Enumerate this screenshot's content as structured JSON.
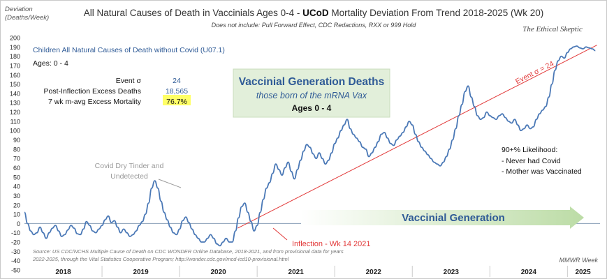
{
  "chart_data": {
    "type": "line",
    "title_part1": "All Natural Causes of Death in Vaccinials Ages 0-4 - ",
    "title_bold": "UCoD",
    "title_part2": " Mortality Deviation From Trend  2018-2025 (Wk 20)",
    "subtitle": "Does not include: Pull Forward Effect,  CDC Redactions, RXX or 999 Hold",
    "brand": "The Ethical Skeptic",
    "ylabel_line1": "Deviation",
    "ylabel_line2": "(Deaths/Week)",
    "xlabel": "MMWR Week",
    "ylim": [
      -50,
      200
    ],
    "ytick_step": 10,
    "x_tick_labels": [
      "2018",
      "2019",
      "2020",
      "2021",
      "2022",
      "2023",
      "2024",
      "2025"
    ],
    "grid": false,
    "series": [
      {
        "color": "#4a78b6",
        "x": [
          2018.0,
          2018.04,
          2018.08,
          2018.12,
          2018.16,
          2018.2,
          2018.24,
          2018.28,
          2018.32,
          2018.36,
          2018.4,
          2018.44,
          2018.48,
          2018.52,
          2018.56,
          2018.6,
          2018.64,
          2018.68,
          2018.72,
          2018.76,
          2018.8,
          2018.84,
          2018.88,
          2018.92,
          2018.96,
          2019.0,
          2019.04,
          2019.08,
          2019.12,
          2019.16,
          2019.2,
          2019.24,
          2019.28,
          2019.32,
          2019.36,
          2019.4,
          2019.44,
          2019.48,
          2019.52,
          2019.56,
          2019.6,
          2019.64,
          2019.68,
          2019.72,
          2019.76,
          2019.8,
          2019.84,
          2019.88,
          2019.92,
          2019.96,
          2020.0,
          2020.04,
          2020.08,
          2020.12,
          2020.16,
          2020.2,
          2020.24,
          2020.28,
          2020.32,
          2020.36,
          2020.4,
          2020.44,
          2020.48,
          2020.52,
          2020.56,
          2020.6,
          2020.64,
          2020.68,
          2020.72,
          2020.76,
          2020.8,
          2020.84,
          2020.88,
          2020.92,
          2020.96,
          2021.0,
          2021.04,
          2021.08,
          2021.12,
          2021.16,
          2021.2,
          2021.24,
          2021.28,
          2021.32,
          2021.36,
          2021.4,
          2021.44,
          2021.48,
          2021.52,
          2021.56,
          2021.6,
          2021.64,
          2021.68,
          2021.72,
          2021.76,
          2021.8,
          2021.84,
          2021.88,
          2021.92,
          2021.96,
          2022.0,
          2022.04,
          2022.08,
          2022.12,
          2022.16,
          2022.2,
          2022.24,
          2022.28,
          2022.32,
          2022.36,
          2022.4,
          2022.44,
          2022.48,
          2022.52,
          2022.56,
          2022.6,
          2022.64,
          2022.68,
          2022.72,
          2022.76,
          2022.8,
          2022.84,
          2022.88,
          2022.92,
          2022.96,
          2023.0,
          2023.04,
          2023.08,
          2023.12,
          2023.16,
          2023.2,
          2023.24,
          2023.28,
          2023.32,
          2023.36,
          2023.4,
          2023.44,
          2023.48,
          2023.52,
          2023.56,
          2023.6,
          2023.64,
          2023.68,
          2023.72,
          2023.76,
          2023.8,
          2023.84,
          2023.88,
          2023.92,
          2023.96,
          2024.0,
          2024.04,
          2024.08,
          2024.12,
          2024.16,
          2024.2,
          2024.24,
          2024.28,
          2024.32,
          2024.36,
          2024.4,
          2024.44,
          2024.48,
          2024.52,
          2024.56,
          2024.6,
          2024.64,
          2024.68,
          2024.72,
          2024.76,
          2024.8,
          2024.84,
          2024.88,
          2024.92,
          2024.96,
          2025.0,
          2025.04,
          2025.08,
          2025.12,
          2025.16,
          2025.2,
          2025.24,
          2025.28,
          2025.32,
          2025.36
        ],
        "y": [
          12,
          0,
          -8,
          -12,
          -10,
          -4,
          -10,
          -16,
          -10,
          -5,
          -2,
          -8,
          -14,
          -12,
          -7,
          -2,
          -5,
          -11,
          -12,
          -6,
          2,
          -2,
          -8,
          -10,
          -6,
          -2,
          4,
          8,
          1,
          3,
          -4,
          -10,
          -6,
          -10,
          -14,
          -12,
          -8,
          -2,
          2,
          10,
          22,
          38,
          46,
          38,
          24,
          12,
          4,
          -4,
          -10,
          -12,
          -6,
          3,
          7,
          1,
          -6,
          -12,
          -16,
          -20,
          -20,
          -16,
          -12,
          -16,
          -22,
          -24,
          -20,
          -16,
          -20,
          -20,
          -8,
          6,
          18,
          22,
          12,
          2,
          -8,
          -2,
          12,
          26,
          38,
          44,
          54,
          64,
          58,
          52,
          60,
          66,
          56,
          48,
          58,
          68,
          78,
          85,
          82,
          75,
          70,
          76,
          70,
          64,
          68,
          76,
          86,
          92,
          100,
          106,
          112,
          102,
          96,
          92,
          88,
          82,
          80,
          72,
          76,
          82,
          88,
          96,
          98,
          92,
          86,
          84,
          90,
          94,
          98,
          104,
          110,
          106,
          96,
          88,
          82,
          78,
          74,
          70,
          66,
          64,
          62,
          66,
          72,
          80,
          90,
          102,
          116,
          128,
          142,
          148,
          136,
          126,
          116,
          112,
          114,
          120,
          116,
          114,
          112,
          116,
          118,
          114,
          110,
          108,
          112,
          106,
          100,
          102,
          106,
          102,
          104,
          112,
          118,
          122,
          126,
          136,
          150,
          165,
          175,
          180,
          178,
          184,
          188,
          190,
          191,
          189,
          188,
          190,
          189,
          188,
          186
        ]
      }
    ],
    "trend_line": {
      "color": "#e23a3a",
      "x_start": 2020.75,
      "y_start": -5,
      "x_end": 2025.38,
      "y_end": 192,
      "label": "Event σ = 24"
    },
    "zero_line_color": "#8aa0b8",
    "annotations": {
      "series_title": "Children All Natural Causes of Death without Covid (U07.1)",
      "ages": "Ages: 0 - 4",
      "stats": [
        {
          "label": "Event σ",
          "value": "24"
        },
        {
          "label": "Post-Inflection Excess Deaths",
          "value": "18,565"
        },
        {
          "label": "7 wk m-avg Excess Mortality",
          "value": "76.7%",
          "highlight": "#ffff66"
        }
      ],
      "box_title": "Vaccinial Generation Deaths",
      "box_sub": "those born of the mRNA Vax",
      "box_ages": "Ages 0 - 4",
      "box_color": "#e2efda",
      "covid_note_line1": "Covid Dry Tinder and",
      "covid_note_line2": "Undetected",
      "likelihood_title": "90+% Likelihood:",
      "likelihood_items": [
        "- Never had Covid",
        "- Mother was Vaccinated"
      ],
      "inflection": "Inflection - Wk 14 2021",
      "arrow_label": "Vaccinial Generation",
      "arrow_color": "#c8e0b4",
      "source_line1": "Source: US CDC/NCHS Multiple Cause of Death on CDC WONDER Online Database, 2018-2021, and from provisional data for years",
      "source_line2": "2022-2025, through the Vital Statistics Cooperative Program; http://wonder.cdc.gov/mcd-icd10-provisional.html"
    }
  }
}
